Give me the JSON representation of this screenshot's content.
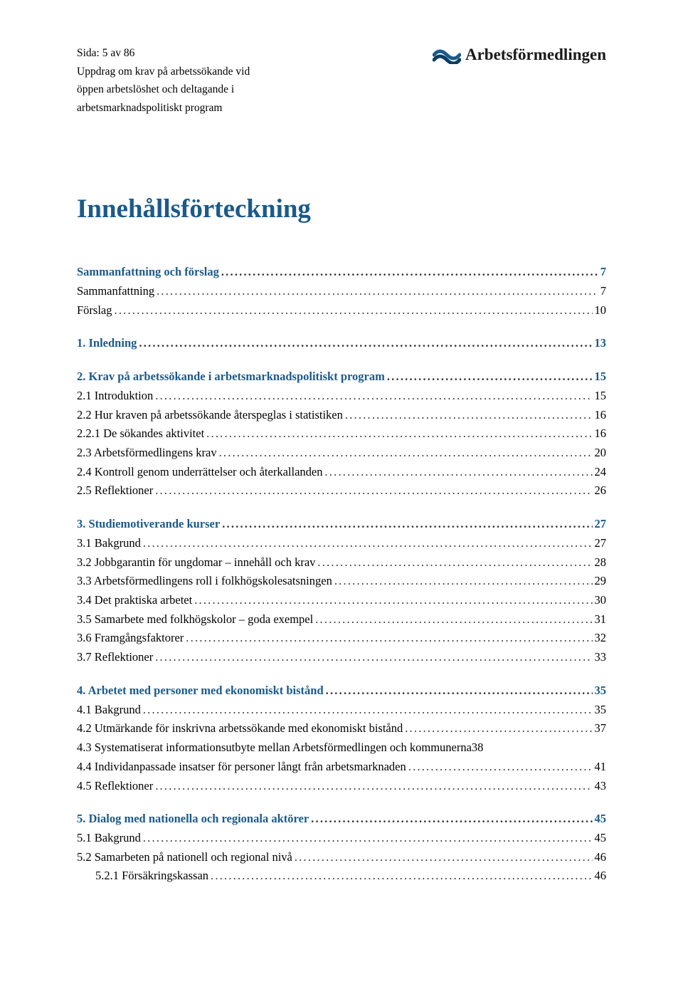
{
  "header": {
    "page_indicator": "Sida: 5 av 86",
    "line1": "Uppdrag om krav på arbetssökande vid",
    "line2": "öppen arbetslöshet och deltagande i",
    "line3": "arbetsmarknadspolitiskt program",
    "logo_text": "Arbetsförmedlingen"
  },
  "title": "Innehållsförteckning",
  "colors": {
    "heading": "#1b5a8a",
    "text": "#000000",
    "background": "#ffffff",
    "logo_wave1": "#1b5a8a",
    "logo_wave2": "#0a3c63"
  },
  "toc": [
    {
      "level": 1,
      "label": "Sammanfattning och förslag",
      "page": "7"
    },
    {
      "level": 2,
      "label": "Sammanfattning",
      "page": "7"
    },
    {
      "level": 2,
      "label": "Förslag",
      "page": "10"
    },
    {
      "gap": true
    },
    {
      "level": 1,
      "label": "1. Inledning",
      "page": "13"
    },
    {
      "gap": true
    },
    {
      "level": 1,
      "label": "2. Krav på arbetssökande i arbetsmarknadspolitiskt program",
      "page": "15"
    },
    {
      "level": 2,
      "label": "2.1 Introduktion",
      "page": "15"
    },
    {
      "level": 2,
      "label": "2.2 Hur kraven på arbetssökande återspeglas i statistiken",
      "page": "16"
    },
    {
      "level": 2,
      "label": "2.2.1 De sökandes aktivitet",
      "page": "16"
    },
    {
      "level": 2,
      "label": "2.3 Arbetsförmedlingens krav",
      "page": "20"
    },
    {
      "level": 2,
      "label": "2.4 Kontroll genom underrättelser och återkallanden",
      "page": "24"
    },
    {
      "level": 2,
      "label": "2.5 Reflektioner",
      "page": "26"
    },
    {
      "gap": true
    },
    {
      "level": 1,
      "label": "3. Studiemotiverande kurser",
      "page": "27"
    },
    {
      "level": 2,
      "label": "3.1 Bakgrund",
      "page": "27"
    },
    {
      "level": 2,
      "label": "3.2 Jobbgarantin för ungdomar – innehåll och krav",
      "page": "28"
    },
    {
      "level": 2,
      "label": "3.3 Arbetsförmedlingens roll i folkhögskolesatsningen",
      "page": "29"
    },
    {
      "level": 2,
      "label": "3.4 Det praktiska arbetet",
      "page": "30"
    },
    {
      "level": 2,
      "label": "3.5 Samarbete med folkhögskolor – goda exempel",
      "page": "31"
    },
    {
      "level": 2,
      "label": "3.6 Framgångsfaktorer",
      "page": "32"
    },
    {
      "level": 2,
      "label": "3.7 Reflektioner",
      "page": "33"
    },
    {
      "gap": true
    },
    {
      "level": 1,
      "label": "4. Arbetet med personer med ekonomiskt bistånd",
      "page": "35"
    },
    {
      "level": 2,
      "label": "4.1 Bakgrund",
      "page": "35"
    },
    {
      "level": 2,
      "label": "4.2 Utmärkande för inskrivna arbetssökande med ekonomiskt bistånd",
      "page": "37"
    },
    {
      "level": 2,
      "label": "4.3 Systematiserat informationsutbyte mellan Arbetsförmedlingen och kommunerna",
      "page": "38",
      "noleader": true
    },
    {
      "level": 2,
      "label": "4.4 Individanpassade insatser för personer långt från arbetsmarknaden",
      "page": "41"
    },
    {
      "level": 2,
      "label": "4.5 Reflektioner",
      "page": "43"
    },
    {
      "gap": true
    },
    {
      "level": 1,
      "label": "5. Dialog med nationella och regionala aktörer",
      "page": "45"
    },
    {
      "level": 2,
      "label": "5.1 Bakgrund",
      "page": "45"
    },
    {
      "level": 2,
      "label": "5.2 Samarbeten på nationell och regional nivå",
      "page": "46"
    },
    {
      "level": 3,
      "label": "5.2.1 Försäkringskassan",
      "page": "46"
    }
  ]
}
